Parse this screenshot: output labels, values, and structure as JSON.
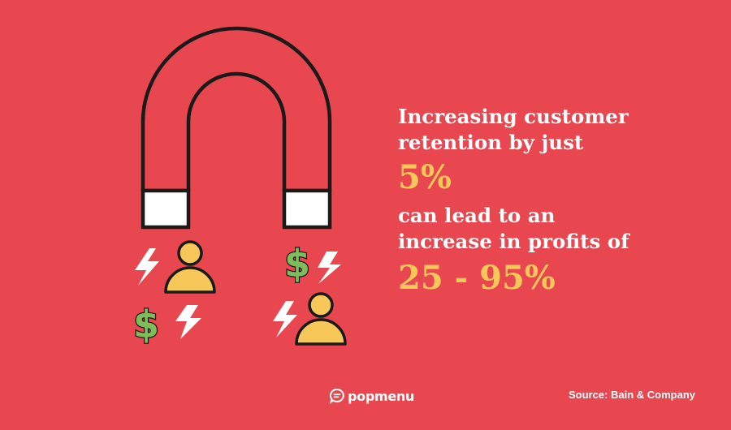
{
  "colors": {
    "background": "#E8474F",
    "accent": "#F7C75A",
    "dollar": "#7DBE5A",
    "outline": "#1A1A1A",
    "white": "#FFFFFF"
  },
  "illustration": {
    "icons": [
      "magnet-icon",
      "lightning-bolt-icon",
      "person-icon",
      "dollar-sign-icon"
    ]
  },
  "headline": {
    "line1": "Increasing customer",
    "line2": "retention by just",
    "stat1": "5%",
    "line3": "can lead to an",
    "line4": "increase in profits of",
    "stat2": "25 - 95%"
  },
  "footer": {
    "brand": "popmenu",
    "source": "Source: Bain & Company"
  }
}
